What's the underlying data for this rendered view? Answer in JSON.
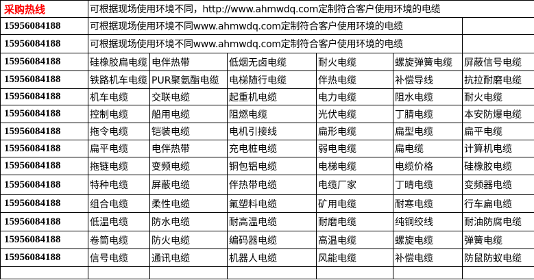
{
  "header": {
    "hotline_label": "采购热线",
    "note": "可根据现场使用环境不同，http://www.ahmwdq.com定制符合客户使用环境的电缆"
  },
  "note_rows": [
    {
      "phone": "15956084188",
      "text": "可根据现场使用环境不同www.ahmwdq.com定制符合客户使用环境的电缆"
    },
    {
      "phone": "15956084188",
      "text": "可根据现场使用环境不同www.ahmwdq.com定制符合客户使用环境的电缆"
    }
  ],
  "rows": [
    {
      "phone": "15956084188",
      "items": [
        "硅橡胶扁电缆",
        "电伴热带",
        "低烟无卤电缆",
        "耐火电缆",
        "螺旋弹簧电缆",
        "屏蔽信号电缆"
      ]
    },
    {
      "phone": "15956084188",
      "items": [
        "铁路机车电缆",
        "PUR聚氨酯电缆",
        "电梯随行电缆",
        "伴热电缆",
        "补偿导线",
        "抗拉耐磨电缆"
      ]
    },
    {
      "phone": "15956084188",
      "items": [
        "机车电缆",
        "交联电缆",
        "起重机电缆",
        "电力电缆",
        "阻水电缆",
        "耐火电缆"
      ]
    },
    {
      "phone": "15956084188",
      "items": [
        "控制电缆",
        "船用电缆",
        "阻燃电缆",
        "光伏电缆",
        "丁腈电缆",
        "本安防爆电缆"
      ]
    },
    {
      "phone": "15956084188",
      "items": [
        "拖令电缆",
        "铠装电缆",
        "电机引接线",
        "扁形电缆",
        "扁型电缆",
        "扁平电缆"
      ]
    },
    {
      "phone": "15956084188",
      "items": [
        "扁平电缆",
        "电伴热带",
        "充电桩电缆",
        "弱电电缆",
        "扁电缆",
        "计算机电缆"
      ]
    },
    {
      "phone": "15956084188",
      "items": [
        "拖链电缆",
        "变频电缆",
        "铜包铝电缆",
        "电梯电缆",
        "电缆价格",
        "硅橡胶电缆"
      ]
    },
    {
      "phone": "15956084188",
      "items": [
        "特种电缆",
        "屏蔽电缆",
        "伴热带电缆",
        "电缆厂家",
        "丁晴电缆",
        "变频器电缆"
      ]
    },
    {
      "phone": "15956084188",
      "items": [
        "组合电缆",
        "柔性电缆",
        "氟塑料电缆",
        "矿用电缆",
        "耐寒电缆",
        "行车扁电缆"
      ]
    },
    {
      "phone": "15956084188",
      "items": [
        "低温电缆",
        "防水电缆",
        "耐高温电缆",
        "耐磨电缆",
        "纯铜绞线",
        "耐油防腐电缆"
      ]
    },
    {
      "phone": "15956084188",
      "items": [
        "卷筒电缆",
        "防火电缆",
        "编码器电缆",
        "高温电缆",
        "螺旋电缆",
        "弹簧电缆"
      ]
    },
    {
      "phone": "15956084188",
      "items": [
        "信号电缆",
        "通讯电缆",
        "机器人电缆",
        "风能电缆",
        "补偿电缆",
        "防鼠防蚁电缆"
      ]
    }
  ],
  "colors": {
    "hotline": "#ff0000",
    "grid": "#000000"
  }
}
